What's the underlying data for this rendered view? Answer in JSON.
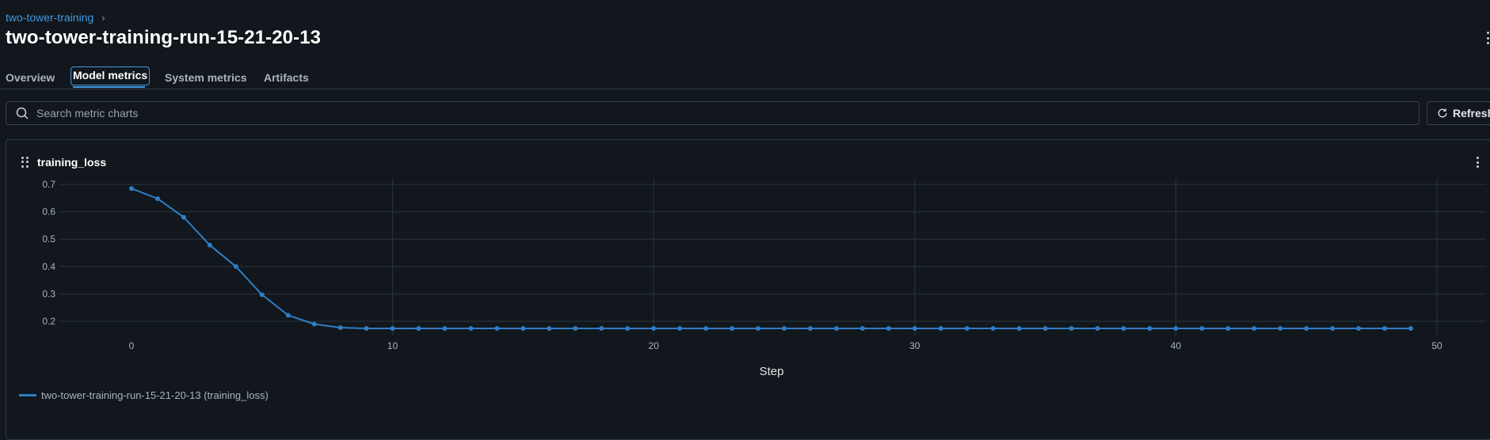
{
  "breadcrumb": {
    "parent": "two-tower-training",
    "separator": "›"
  },
  "page": {
    "title": "two-tower-training-run-15-21-20-13"
  },
  "tabs": [
    {
      "label": "Overview"
    },
    {
      "label": "Model metrics",
      "active": true
    },
    {
      "label": "System metrics"
    },
    {
      "label": "Artifacts"
    }
  ],
  "search": {
    "placeholder": "Search metric charts",
    "value": ""
  },
  "toolbar": {
    "refresh_label": "Refresh"
  },
  "colors": {
    "accent": "#4299e0",
    "series": "#2f7dc4",
    "background": "#11171c"
  },
  "icons": {
    "search": "search-icon",
    "refresh": "refresh-icon",
    "drag": "drag-handle-icon",
    "more": "kebab-menu-icon"
  },
  "chart_data": {
    "type": "line",
    "title": "training_loss",
    "xlabel": "Step",
    "ylabel": "",
    "xlim": [
      -5,
      52
    ],
    "ylim": [
      0.15,
      0.72
    ],
    "xticks": [
      0,
      10,
      20,
      30,
      40,
      50
    ],
    "yticks": [
      0.2,
      0.3,
      0.4,
      0.5,
      0.6,
      0.7
    ],
    "grid": true,
    "legend_position": "bottom-left",
    "series": [
      {
        "name": "two-tower-training-run-15-21-20-13 (training_loss)",
        "color": "#2f7dc4",
        "x": [
          0,
          1,
          2,
          3,
          4,
          5,
          6,
          7,
          8,
          9,
          10,
          11,
          12,
          13,
          14,
          15,
          16,
          17,
          18,
          19,
          20,
          21,
          22,
          23,
          24,
          25,
          26,
          27,
          28,
          29,
          30,
          31,
          32,
          33,
          34,
          35,
          36,
          37,
          38,
          39,
          40,
          41,
          42,
          43,
          44,
          45,
          46,
          47,
          48,
          49
        ],
        "y": [
          0.685,
          0.648,
          0.58,
          0.478,
          0.4,
          0.297,
          0.222,
          0.19,
          0.177,
          0.174,
          0.174,
          0.174,
          0.174,
          0.174,
          0.174,
          0.174,
          0.174,
          0.174,
          0.174,
          0.174,
          0.174,
          0.174,
          0.174,
          0.174,
          0.174,
          0.174,
          0.174,
          0.174,
          0.174,
          0.174,
          0.174,
          0.174,
          0.174,
          0.174,
          0.174,
          0.174,
          0.174,
          0.174,
          0.174,
          0.174,
          0.174,
          0.174,
          0.174,
          0.174,
          0.174,
          0.174,
          0.174,
          0.174,
          0.174,
          0.174
        ]
      }
    ]
  }
}
